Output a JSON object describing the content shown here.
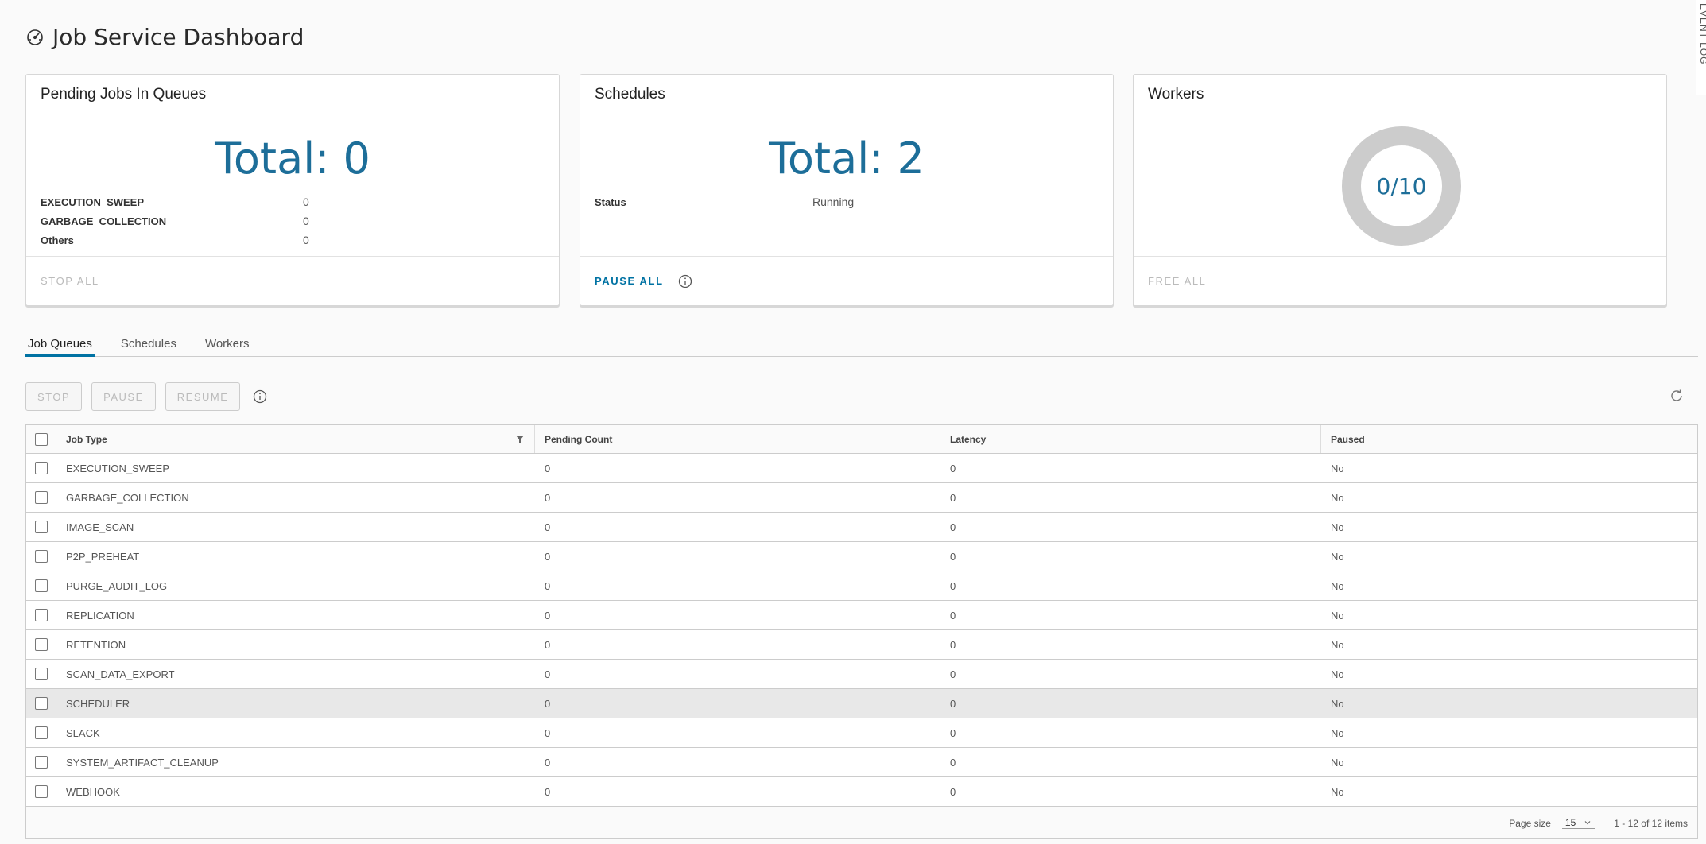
{
  "page": {
    "title": "Job Service Dashboard",
    "event_log_label": "EVENT LOG"
  },
  "cards": {
    "pending": {
      "title": "Pending Jobs In Queues",
      "total": "Total: 0",
      "rows": [
        {
          "key": "EXECUTION_SWEEP",
          "value": "0"
        },
        {
          "key": "GARBAGE_COLLECTION",
          "value": "0"
        },
        {
          "key": "Others",
          "value": "0"
        }
      ],
      "action": "STOP ALL"
    },
    "schedules": {
      "title": "Schedules",
      "total": "Total: 2",
      "status_key": "Status",
      "status_value": "Running",
      "action": "PAUSE ALL"
    },
    "workers": {
      "title": "Workers",
      "busy": 0,
      "total": 10,
      "label": "0/10",
      "action": "FREE ALL"
    }
  },
  "tabs": [
    {
      "label": "Job Queues",
      "active": true
    },
    {
      "label": "Schedules",
      "active": false
    },
    {
      "label": "Workers",
      "active": false
    }
  ],
  "toolbar": {
    "stop": "STOP",
    "pause": "PAUSE",
    "resume": "RESUME"
  },
  "table": {
    "headers": {
      "job_type": "Job Type",
      "pending_count": "Pending Count",
      "latency": "Latency",
      "paused": "Paused"
    },
    "rows": [
      {
        "job_type": "EXECUTION_SWEEP",
        "pending": "0",
        "latency": "0",
        "paused": "No"
      },
      {
        "job_type": "GARBAGE_COLLECTION",
        "pending": "0",
        "latency": "0",
        "paused": "No"
      },
      {
        "job_type": "IMAGE_SCAN",
        "pending": "0",
        "latency": "0",
        "paused": "No"
      },
      {
        "job_type": "P2P_PREHEAT",
        "pending": "0",
        "latency": "0",
        "paused": "No"
      },
      {
        "job_type": "PURGE_AUDIT_LOG",
        "pending": "0",
        "latency": "0",
        "paused": "No"
      },
      {
        "job_type": "REPLICATION",
        "pending": "0",
        "latency": "0",
        "paused": "No"
      },
      {
        "job_type": "RETENTION",
        "pending": "0",
        "latency": "0",
        "paused": "No"
      },
      {
        "job_type": "SCAN_DATA_EXPORT",
        "pending": "0",
        "latency": "0",
        "paused": "No"
      },
      {
        "job_type": "SCHEDULER",
        "pending": "0",
        "latency": "0",
        "paused": "No",
        "highlight": true
      },
      {
        "job_type": "SLACK",
        "pending": "0",
        "latency": "0",
        "paused": "No"
      },
      {
        "job_type": "SYSTEM_ARTIFACT_CLEANUP",
        "pending": "0",
        "latency": "0",
        "paused": "No"
      },
      {
        "job_type": "WEBHOOK",
        "pending": "0",
        "latency": "0",
        "paused": "No"
      }
    ],
    "footer": {
      "page_size_label": "Page size",
      "page_size_value": "15",
      "range_text": "1 - 12 of 12 items"
    }
  },
  "colors": {
    "accent": "#0072a3",
    "total_text": "#1d6e99",
    "donut_ring": "#cccccc"
  },
  "icons": [
    "dashboard-icon",
    "info-icon",
    "refresh-icon",
    "filter-icon",
    "chevron-down-icon"
  ]
}
